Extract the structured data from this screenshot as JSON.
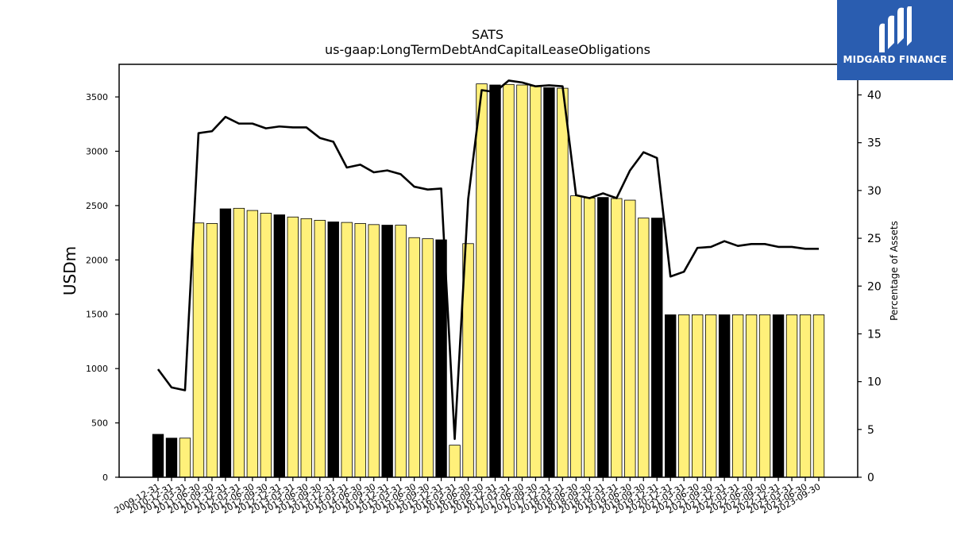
{
  "brand": {
    "name": "MIDGARD FINANCE",
    "color": "#2a5db0",
    "icon": "midgard-logo-icon"
  },
  "chart_data": {
    "type": "bar",
    "title": "SATS",
    "subtitle": "us-gaap:LongTermDebtAndCapitalLeaseObligations",
    "ylabel": "USDm",
    "y2label": "Percentage of Assets",
    "ylim": [
      0,
      3800
    ],
    "y2lim": [
      0,
      43.2
    ],
    "yticks": [
      0,
      500,
      1000,
      1500,
      2000,
      2500,
      3000,
      3500
    ],
    "y2ticks": [
      0,
      5,
      10,
      15,
      20,
      25,
      30,
      35,
      40
    ],
    "grid": false,
    "legend": "none",
    "colors": {
      "annual": "#000000",
      "quarterly": "#fff07a",
      "line": "#000000"
    },
    "categories": [
      "2009-12-31",
      "2010-12-31",
      "2011-03-31",
      "2011-06-30",
      "2011-09-30",
      "2011-12-31",
      "2012-03-31",
      "2012-06-30",
      "2012-09-30",
      "2012-12-31",
      "2013-03-31",
      "2013-06-30",
      "2013-09-30",
      "2013-12-31",
      "2014-03-31",
      "2014-06-30",
      "2014-09-30",
      "2014-12-31",
      "2015-03-31",
      "2015-06-30",
      "2015-09-30",
      "2015-12-31",
      "2016-03-31",
      "2016-06-30",
      "2016-09-30",
      "2016-12-31",
      "2017-03-31",
      "2017-06-30",
      "2017-09-30",
      "2017-12-31",
      "2018-03-31",
      "2018-06-30",
      "2018-09-30",
      "2018-12-31",
      "2019-03-31",
      "2019-06-30",
      "2019-09-30",
      "2019-12-31",
      "2020-12-31",
      "2021-03-31",
      "2021-06-30",
      "2021-09-30",
      "2021-12-31",
      "2022-03-31",
      "2022-06-30",
      "2022-09-30",
      "2022-12-31",
      "2023-03-31",
      "2023-06-30",
      "2023-09-30"
    ],
    "series": [
      {
        "kind": "bar",
        "values": [
          395,
          360,
          360,
          2340,
          2335,
          2470,
          2475,
          2455,
          2430,
          2415,
          2395,
          2380,
          2365,
          2350,
          2345,
          2335,
          2325,
          2320,
          2320,
          2205,
          2195,
          2185,
          295,
          2150,
          3620,
          3610,
          3615,
          3610,
          3600,
          3585,
          3580,
          2590,
          2570,
          2575,
          2565,
          2550,
          2385,
          2385,
          1495,
          1495,
          1495,
          1495,
          1495,
          1495,
          1495,
          1495,
          1495,
          1495,
          1495,
          1495
        ],
        "period_type": [
          "annual",
          "annual",
          "quarterly",
          "quarterly",
          "quarterly",
          "annual",
          "quarterly",
          "quarterly",
          "quarterly",
          "annual",
          "quarterly",
          "quarterly",
          "quarterly",
          "annual",
          "quarterly",
          "quarterly",
          "quarterly",
          "annual",
          "quarterly",
          "quarterly",
          "quarterly",
          "annual",
          "quarterly",
          "quarterly",
          "quarterly",
          "annual",
          "quarterly",
          "quarterly",
          "quarterly",
          "annual",
          "quarterly",
          "quarterly",
          "quarterly",
          "annual",
          "quarterly",
          "quarterly",
          "quarterly",
          "annual",
          "annual",
          "quarterly",
          "quarterly",
          "quarterly",
          "annual",
          "quarterly",
          "quarterly",
          "quarterly",
          "annual",
          "quarterly",
          "quarterly",
          "quarterly"
        ]
      },
      {
        "kind": "line",
        "axis": "y2",
        "values": [
          11.3,
          9.4,
          9.1,
          36.0,
          36.2,
          37.7,
          37.0,
          37.0,
          36.5,
          36.7,
          36.6,
          36.6,
          35.5,
          35.1,
          32.4,
          32.7,
          31.9,
          32.1,
          31.7,
          30.4,
          30.1,
          30.2,
          4.0,
          29.1,
          40.5,
          40.3,
          41.5,
          41.3,
          40.9,
          41.0,
          40.9,
          29.5,
          29.2,
          29.7,
          29.2,
          32.1,
          34.0,
          33.4,
          21.0,
          21.5,
          24.0,
          24.1,
          24.7,
          24.2,
          24.4,
          24.4,
          24.1,
          24.1,
          23.9,
          23.9
        ]
      }
    ]
  }
}
